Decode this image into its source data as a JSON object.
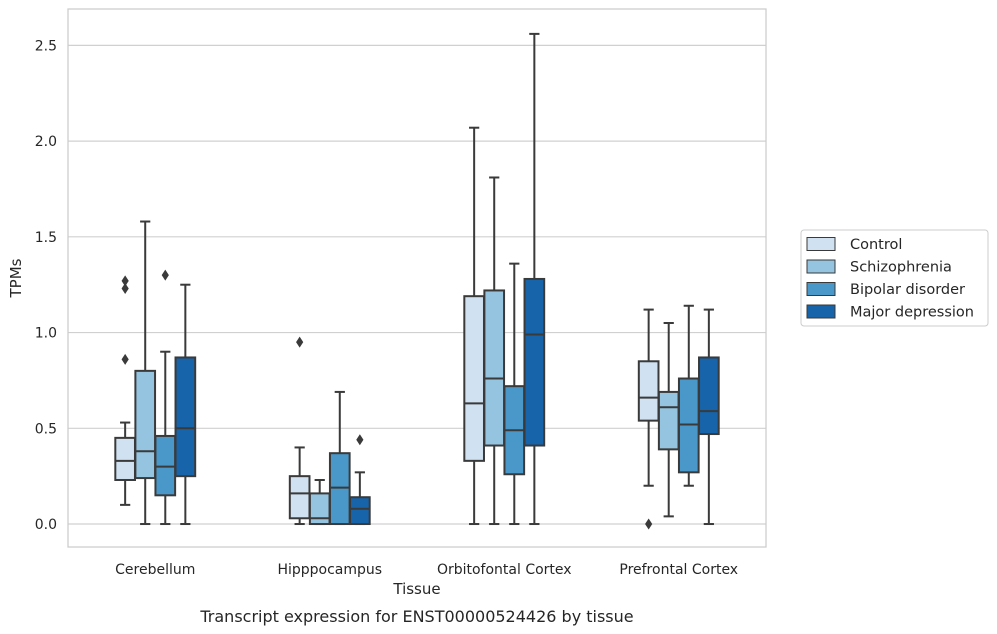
{
  "caption": "Transcript expression for ENST00000524426 by tissue",
  "chart_data": {
    "type": "box",
    "xlabel": "Tissue",
    "ylabel": "TPMs",
    "ylim": [
      -0.12,
      2.69
    ],
    "yticks": [
      "0.0",
      "0.5",
      "1.0",
      "1.5",
      "2.0",
      "2.5"
    ],
    "grid": "horizontal",
    "legend_position": "right",
    "categories": [
      "Cerebellum",
      "Hipppocampus",
      "Orbitofontal Cortex",
      "Prefrontal Cortex"
    ],
    "series": [
      {
        "name": "Control",
        "color": "#d0e1f2",
        "boxes": [
          {
            "whisker_low": 0.1,
            "q1": 0.23,
            "median": 0.33,
            "q3": 0.45,
            "whisker_high": 0.53,
            "outliers": [
              0.86,
              1.23,
              1.27
            ]
          },
          {
            "whisker_low": 0.0,
            "q1": 0.03,
            "median": 0.16,
            "q3": 0.25,
            "whisker_high": 0.4,
            "outliers": [
              0.95
            ]
          },
          {
            "whisker_low": 0.0,
            "q1": 0.33,
            "median": 0.63,
            "q3": 1.19,
            "whisker_high": 2.07,
            "outliers": []
          },
          {
            "whisker_low": 0.2,
            "q1": 0.54,
            "median": 0.66,
            "q3": 0.85,
            "whisker_high": 1.12,
            "outliers": [
              0.0
            ]
          }
        ]
      },
      {
        "name": "Schizophrenia",
        "color": "#94c4df",
        "boxes": [
          {
            "whisker_low": 0.0,
            "q1": 0.24,
            "median": 0.38,
            "q3": 0.8,
            "whisker_high": 1.58,
            "outliers": []
          },
          {
            "whisker_low": 0.0,
            "q1": 0.0,
            "median": 0.03,
            "q3": 0.16,
            "whisker_high": 0.23,
            "outliers": []
          },
          {
            "whisker_low": 0.0,
            "q1": 0.41,
            "median": 0.76,
            "q3": 1.22,
            "whisker_high": 1.81,
            "outliers": []
          },
          {
            "whisker_low": 0.04,
            "q1": 0.39,
            "median": 0.61,
            "q3": 0.69,
            "whisker_high": 1.05,
            "outliers": []
          }
        ]
      },
      {
        "name": "Bipolar disorder",
        "color": "#4a98c9",
        "boxes": [
          {
            "whisker_low": 0.0,
            "q1": 0.15,
            "median": 0.3,
            "q3": 0.46,
            "whisker_high": 0.9,
            "outliers": [
              1.3
            ]
          },
          {
            "whisker_low": 0.0,
            "q1": 0.0,
            "median": 0.19,
            "q3": 0.37,
            "whisker_high": 0.69,
            "outliers": []
          },
          {
            "whisker_low": 0.0,
            "q1": 0.26,
            "median": 0.49,
            "q3": 0.72,
            "whisker_high": 1.36,
            "outliers": []
          },
          {
            "whisker_low": 0.2,
            "q1": 0.27,
            "median": 0.52,
            "q3": 0.76,
            "whisker_high": 1.14,
            "outliers": []
          }
        ]
      },
      {
        "name": "Major depression",
        "color": "#1764ab",
        "boxes": [
          {
            "whisker_low": 0.0,
            "q1": 0.25,
            "median": 0.5,
            "q3": 0.87,
            "whisker_high": 1.25,
            "outliers": []
          },
          {
            "whisker_low": 0.0,
            "q1": 0.0,
            "median": 0.08,
            "q3": 0.14,
            "whisker_high": 0.27,
            "outliers": [
              0.44
            ]
          },
          {
            "whisker_low": 0.0,
            "q1": 0.41,
            "median": 0.99,
            "q3": 1.28,
            "whisker_high": 2.56,
            "outliers": []
          },
          {
            "whisker_low": 0.0,
            "q1": 0.47,
            "median": 0.59,
            "q3": 0.87,
            "whisker_high": 1.12,
            "outliers": []
          }
        ]
      }
    ]
  }
}
